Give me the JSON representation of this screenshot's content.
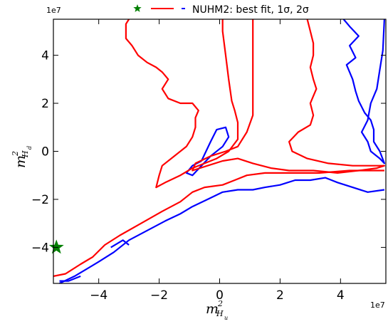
{
  "chart_data": {
    "type": "contour",
    "legend": {
      "text": "NUHM2: best fit, 1σ, 2σ",
      "placement": "top-center"
    },
    "xlabel": {
      "base": "m",
      "sup": "2",
      "sub": "H",
      "subsub": "u"
    },
    "ylabel": {
      "base": "m",
      "sup": "2",
      "sub": "H",
      "subsub": "d"
    },
    "xlim": [
      -55000000.0,
      55000000.0
    ],
    "ylim": [
      -55000000.0,
      55000000.0
    ],
    "x_ticks": [
      -40000000.0,
      -20000000.0,
      0,
      20000000.0,
      40000000.0
    ],
    "x_tick_labels": [
      "−4",
      "−2",
      "0",
      "2",
      "4"
    ],
    "y_ticks": [
      -40000000.0,
      -20000000.0,
      0,
      20000000.0,
      40000000.0
    ],
    "y_tick_labels": [
      "−4",
      "−2",
      "0",
      "2",
      "4"
    ],
    "x_offset_label": "1e7",
    "y_offset_label": "1e7",
    "grid": false,
    "colors": {
      "best_fit": "#007f00",
      "one_sigma": "#ff0000",
      "two_sigma": "#0000ff"
    },
    "best_fit": {
      "x": -54000000.0,
      "y": -40000000.0
    },
    "one_sigma": [
      [
        [
          -5.5,
          -5.2
        ],
        [
          -5.1,
          -5.1
        ],
        [
          -4.6,
          -4.7
        ],
        [
          -4.2,
          -4.4
        ],
        [
          -3.8,
          -3.9
        ],
        [
          -3.3,
          -3.5
        ],
        [
          -2.6,
          -3.0
        ],
        [
          -1.9,
          -2.5
        ],
        [
          -1.3,
          -2.1
        ],
        [
          -0.9,
          -1.7
        ],
        [
          -0.5,
          -1.5
        ],
        [
          0.1,
          -1.4
        ],
        [
          0.5,
          -1.2
        ],
        [
          0.9,
          -1.0
        ],
        [
          1.5,
          -0.9
        ],
        [
          2.3,
          -0.9
        ],
        [
          3.3,
          -0.9
        ],
        [
          4.3,
          -0.8
        ],
        [
          5.0,
          -0.8
        ],
        [
          5.45,
          -0.8
        ]
      ],
      [
        [
          -3.0,
          5.5
        ],
        [
          -3.1,
          5.3
        ],
        [
          -3.1,
          4.7
        ],
        [
          -2.9,
          4.4
        ],
        [
          -2.7,
          4.0
        ],
        [
          -2.4,
          3.7
        ],
        [
          -2.1,
          3.5
        ],
        [
          -1.9,
          3.3
        ],
        [
          -1.7,
          3.0
        ],
        [
          -1.9,
          2.6
        ],
        [
          -1.7,
          2.2
        ],
        [
          -1.3,
          2.0
        ],
        [
          -0.9,
          2.0
        ],
        [
          -0.7,
          1.7
        ],
        [
          -0.8,
          1.4
        ],
        [
          -0.8,
          1.0
        ],
        [
          -0.9,
          0.6
        ],
        [
          -1.1,
          0.2
        ],
        [
          -1.5,
          -0.2
        ],
        [
          -1.9,
          -0.6
        ],
        [
          -2.0,
          -1.0
        ],
        [
          -2.1,
          -1.5
        ],
        [
          -1.8,
          -1.3
        ],
        [
          -1.3,
          -1.0
        ],
        [
          -0.9,
          -0.7
        ],
        [
          -0.5,
          -0.5
        ],
        [
          -0.1,
          -0.3
        ],
        [
          0.3,
          0.0
        ],
        [
          0.6,
          0.5
        ],
        [
          0.6,
          1.2
        ],
        [
          0.5,
          1.7
        ],
        [
          0.4,
          2.1
        ],
        [
          0.3,
          3.0
        ],
        [
          0.2,
          4.0
        ],
        [
          0.1,
          5.0
        ],
        [
          0.1,
          5.5
        ]
      ],
      [
        [
          2.9,
          5.5
        ],
        [
          3.0,
          5.0
        ],
        [
          3.1,
          4.5
        ],
        [
          3.1,
          4.0
        ],
        [
          3.0,
          3.5
        ],
        [
          3.1,
          3.0
        ],
        [
          3.2,
          2.6
        ],
        [
          3.1,
          2.3
        ],
        [
          3.0,
          2.0
        ],
        [
          3.1,
          1.5
        ],
        [
          3.0,
          1.1
        ],
        [
          2.6,
          0.8
        ],
        [
          2.3,
          0.4
        ],
        [
          2.4,
          0.0
        ],
        [
          2.9,
          -0.3
        ],
        [
          3.6,
          -0.5
        ],
        [
          4.4,
          -0.6
        ],
        [
          5.1,
          -0.6
        ],
        [
          5.45,
          -0.6
        ],
        [
          5.2,
          -0.7
        ],
        [
          4.6,
          -0.8
        ],
        [
          3.9,
          -0.9
        ],
        [
          3.1,
          -0.8
        ],
        [
          2.3,
          -0.8
        ],
        [
          1.7,
          -0.7
        ],
        [
          1.1,
          -0.5
        ],
        [
          0.6,
          -0.3
        ],
        [
          0.1,
          -0.4
        ],
        [
          -0.4,
          -0.6
        ],
        [
          -0.9,
          -0.8
        ],
        [
          -0.8,
          -0.5
        ],
        [
          -0.3,
          -0.2
        ],
        [
          0.2,
          0.0
        ],
        [
          0.6,
          0.2
        ],
        [
          0.9,
          0.8
        ],
        [
          1.1,
          1.5
        ],
        [
          1.1,
          2.5
        ],
        [
          1.1,
          3.5
        ],
        [
          1.1,
          4.5
        ],
        [
          1.1,
          5.5
        ]
      ]
    ],
    "two_sigma": [
      [
        [
          -5.3,
          -5.5
        ],
        [
          -4.8,
          -5.2
        ],
        [
          -4.4,
          -4.9
        ],
        [
          -4.0,
          -4.6
        ],
        [
          -3.5,
          -4.2
        ],
        [
          -3.0,
          -3.7
        ],
        [
          -2.4,
          -3.3
        ],
        [
          -1.8,
          -2.9
        ],
        [
          -1.3,
          -2.6
        ],
        [
          -0.9,
          -2.3
        ],
        [
          -0.4,
          -2.0
        ],
        [
          0.1,
          -1.7
        ],
        [
          0.6,
          -1.6
        ],
        [
          1.1,
          -1.6
        ],
        [
          1.5,
          -1.5
        ],
        [
          2.0,
          -1.4
        ],
        [
          2.5,
          -1.2
        ],
        [
          3.0,
          -1.2
        ],
        [
          3.5,
          -1.1
        ],
        [
          3.9,
          -1.3
        ],
        [
          4.4,
          -1.5
        ],
        [
          4.9,
          -1.7
        ],
        [
          5.45,
          -1.6
        ]
      ],
      [
        [
          -0.6,
          -0.4
        ],
        [
          -0.9,
          -0.6
        ],
        [
          -1.1,
          -0.9
        ],
        [
          -0.9,
          -1.0
        ],
        [
          -0.6,
          -0.6
        ],
        [
          -0.3,
          -0.2
        ],
        [
          0.1,
          0.2
        ],
        [
          0.3,
          0.6
        ],
        [
          0.2,
          1.0
        ],
        [
          -0.1,
          0.9
        ],
        [
          -0.3,
          0.4
        ],
        [
          -0.6,
          -0.4
        ]
      ],
      [
        [
          4.1,
          5.5
        ],
        [
          4.3,
          5.2
        ],
        [
          4.6,
          4.8
        ],
        [
          4.3,
          4.4
        ],
        [
          4.5,
          3.9
        ],
        [
          4.2,
          3.6
        ],
        [
          4.4,
          3.0
        ],
        [
          4.5,
          2.5
        ],
        [
          4.6,
          2.1
        ],
        [
          4.8,
          1.6
        ],
        [
          5.0,
          1.3
        ],
        [
          5.1,
          0.9
        ],
        [
          5.1,
          0.4
        ],
        [
          5.3,
          0.0
        ],
        [
          5.45,
          -0.5
        ],
        [
          5.3,
          -0.3
        ],
        [
          5.0,
          0.0
        ],
        [
          4.9,
          0.4
        ],
        [
          4.7,
          0.8
        ],
        [
          4.9,
          1.3
        ],
        [
          5.0,
          2.0
        ],
        [
          5.2,
          2.6
        ],
        [
          5.3,
          3.4
        ],
        [
          5.4,
          4.2
        ],
        [
          5.45,
          5.5
        ]
      ],
      [
        [
          -5.3,
          -5.4
        ],
        [
          -5.0,
          -5.4
        ],
        [
          -4.6,
          -5.2
        ]
      ],
      [
        [
          -3.6,
          -4.0
        ],
        [
          -3.2,
          -3.7
        ],
        [
          -3.0,
          -3.9
        ]
      ]
    ]
  }
}
